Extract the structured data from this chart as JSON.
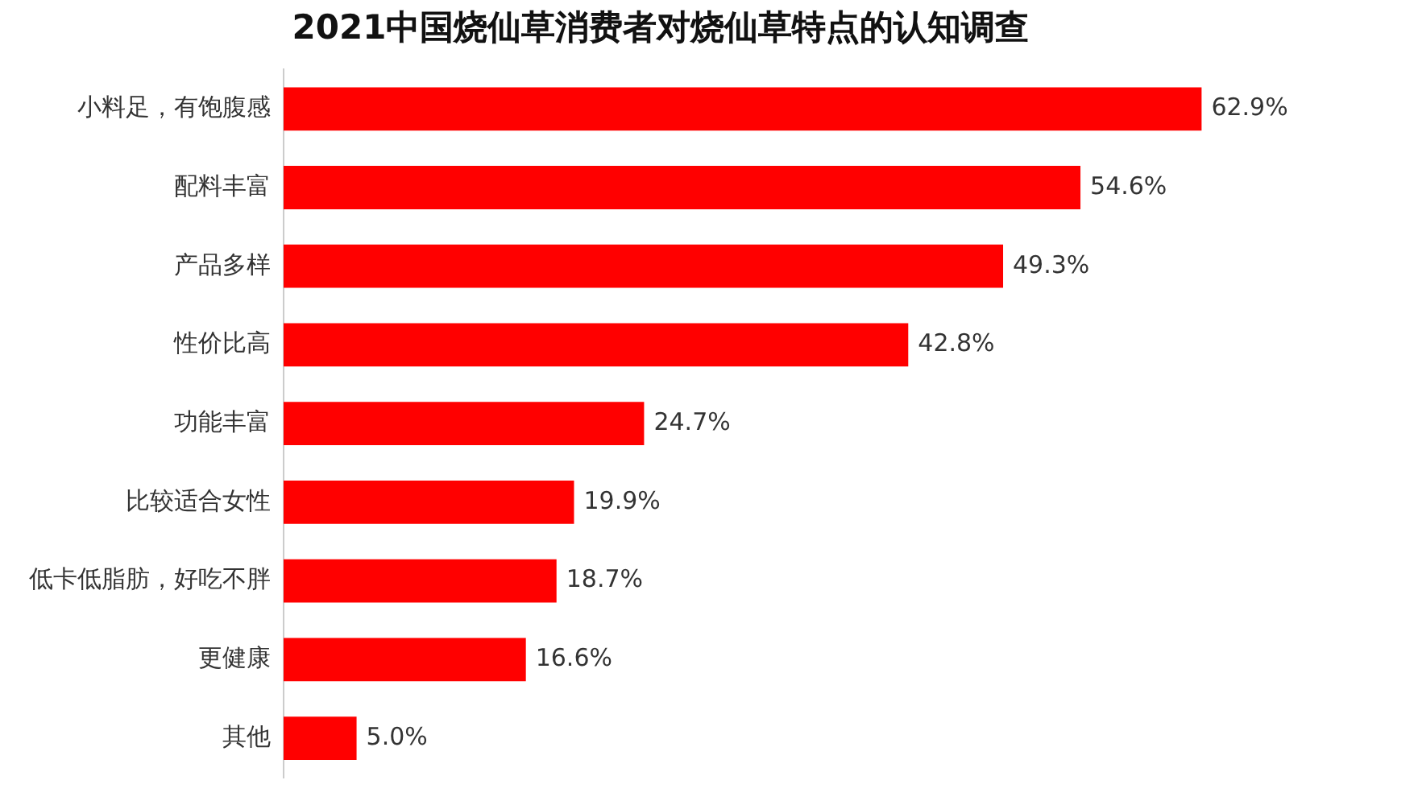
{
  "chart_data": {
    "type": "bar",
    "orientation": "horizontal",
    "title": "2021中国烧仙草消费者对烧仙草特点的认知调查",
    "categories": [
      "小料足，有饱腹感",
      "配料丰富",
      "产品多样",
      "性价比高",
      "功能丰富",
      "比较适合女性",
      "低卡低脂肪，好吃不胖",
      "更健康",
      "其他"
    ],
    "values": [
      62.9,
      54.6,
      49.3,
      42.8,
      24.7,
      19.9,
      18.7,
      16.6,
      5.0
    ],
    "value_labels": [
      "62.9%",
      "54.6%",
      "49.3%",
      "42.8%",
      "24.7%",
      "19.9%",
      "18.7%",
      "16.6%",
      "5.0%"
    ],
    "color": "#ff0000",
    "legend": false
  }
}
